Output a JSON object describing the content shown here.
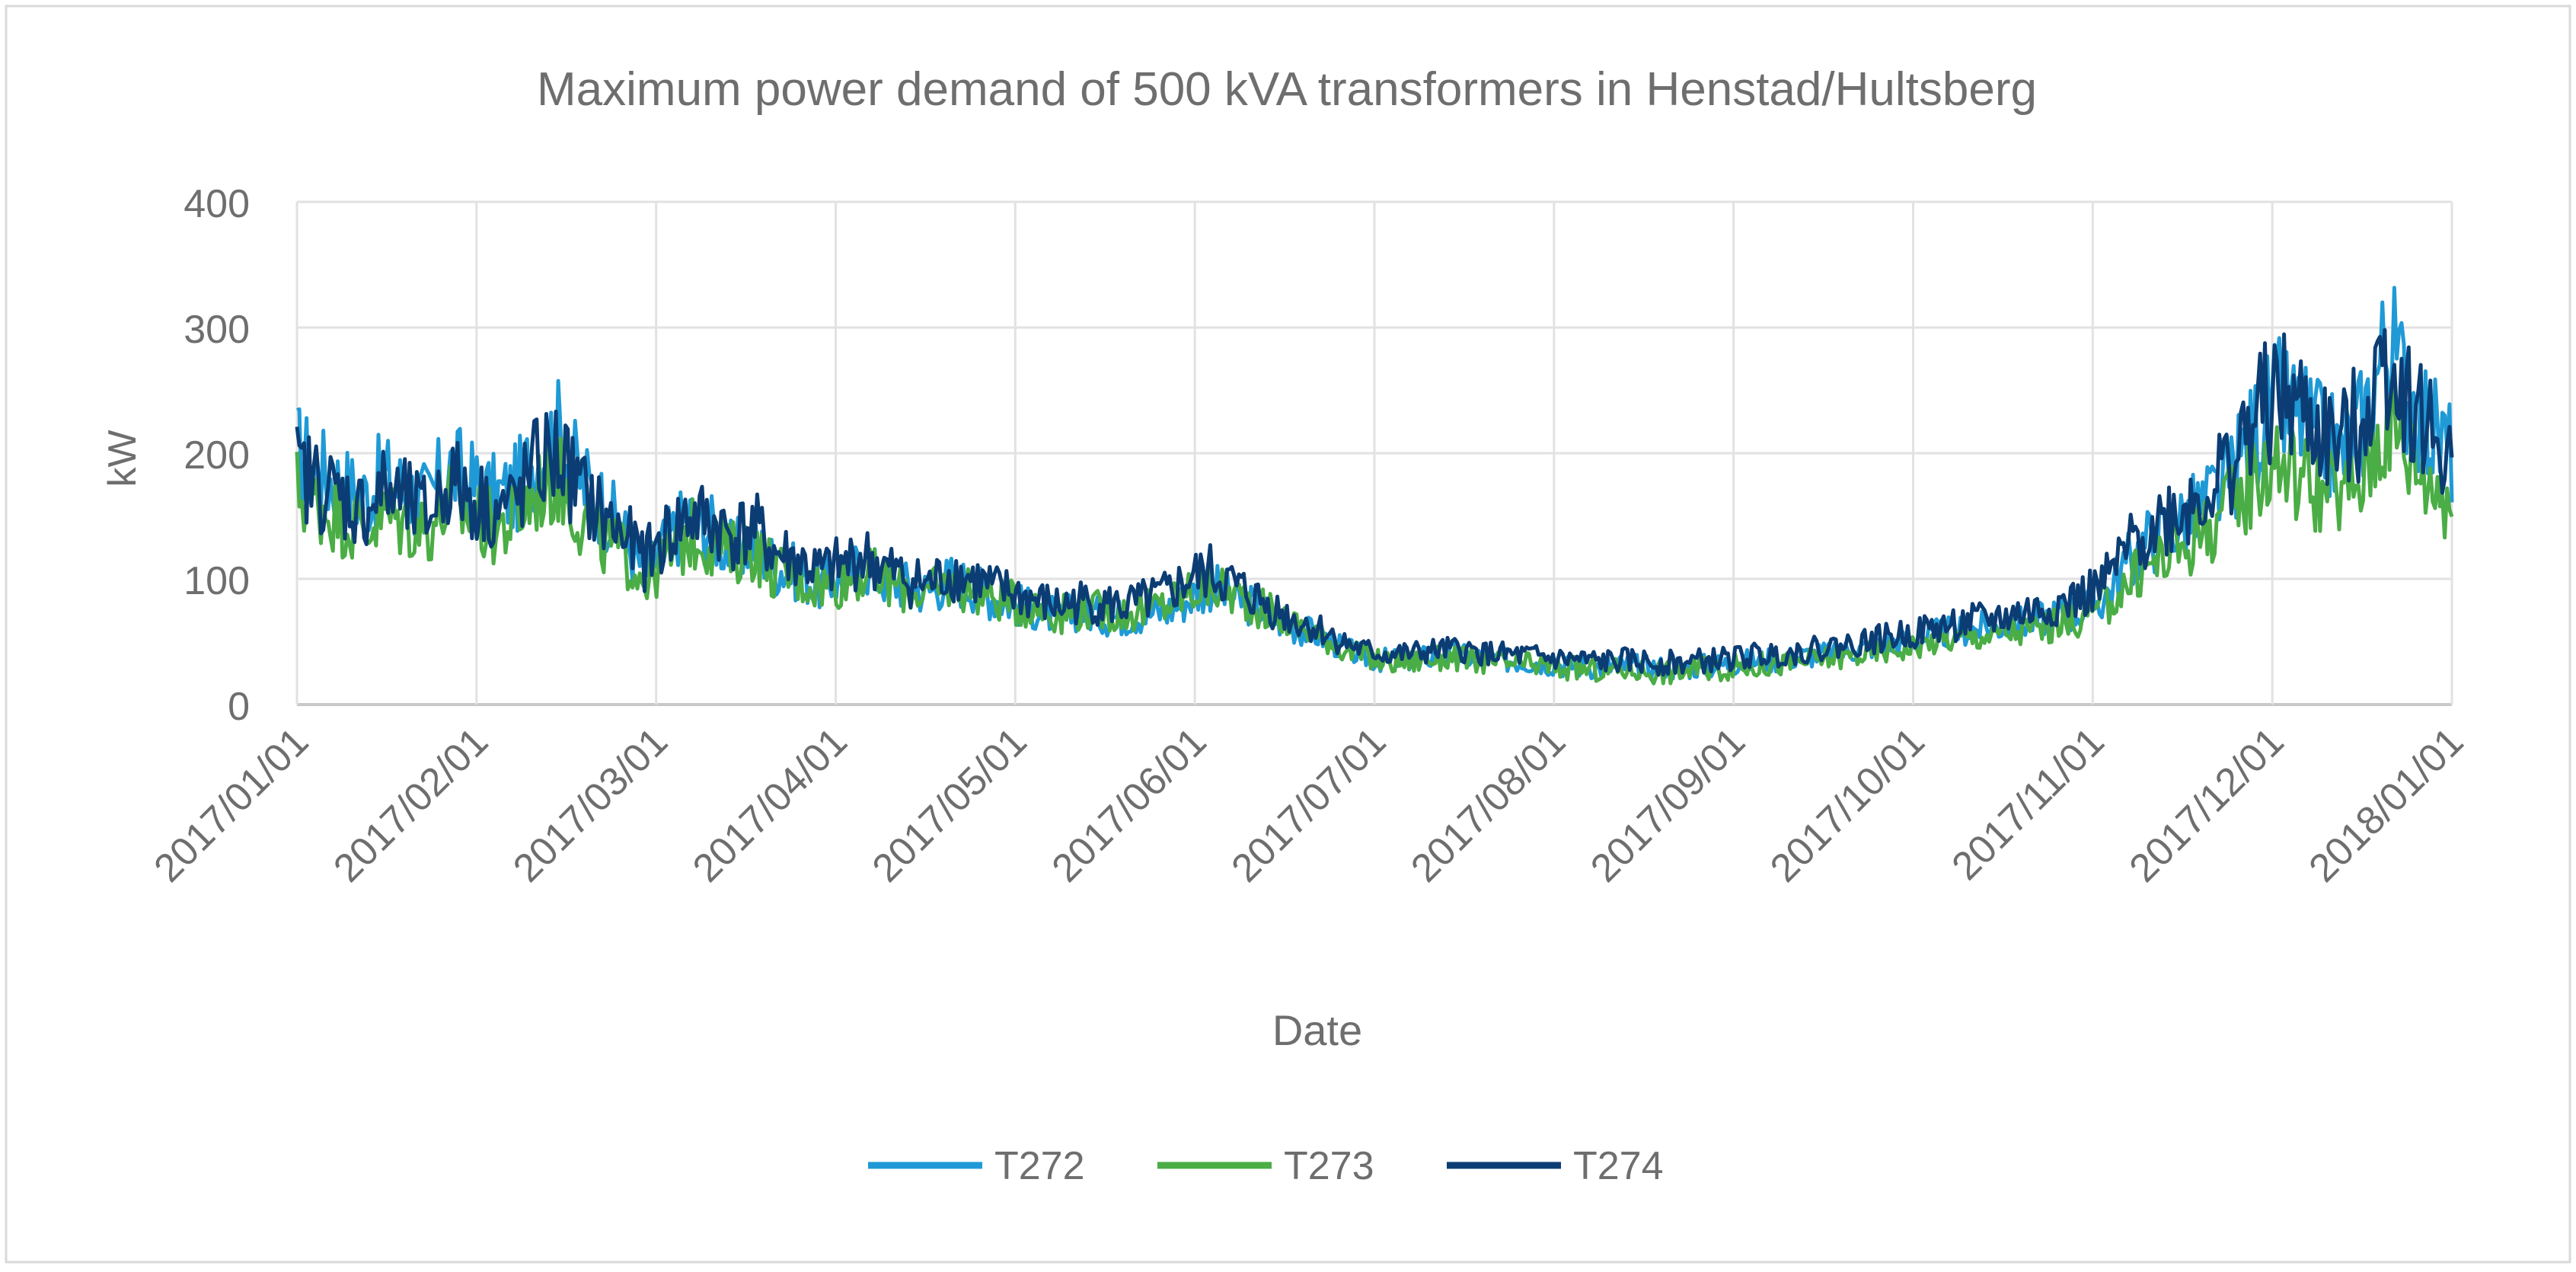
{
  "chart_data": {
    "type": "line",
    "title": "Maximum power demand of 500 kVA transformers in Henstad/Hultsberg",
    "xlabel": "Date",
    "ylabel": "kW",
    "ylim": [
      0,
      400
    ],
    "yticks": [
      0,
      100,
      200,
      300,
      400
    ],
    "xlim": [
      "2017/01/01",
      "2018/01/01"
    ],
    "xticks": [
      "2017/01/01",
      "2017/02/01",
      "2017/03/01",
      "2017/04/01",
      "2017/05/01",
      "2017/06/01",
      "2017/07/01",
      "2017/08/01",
      "2017/09/01",
      "2017/10/01",
      "2017/11/01",
      "2017/12/01",
      "2018/01/01"
    ],
    "grid": true,
    "legend": "bottom-center",
    "series": [
      {
        "name": "T272",
        "color": "#1f9ad6",
        "values": [
          200,
          185,
          175,
          165,
          180,
          170,
          160,
          190,
          175,
          165,
          170,
          200,
          215,
          180,
          160,
          135,
          105,
          130,
          150,
          140,
          120,
          130,
          110,
          105,
          95,
          100,
          110,
          100,
          95,
          90,
          100,
          95,
          85,
          80,
          75,
          70,
          75,
          70,
          70,
          72,
          75,
          85,
          95,
          85,
          78,
          68,
          60,
          55,
          45,
          38,
          35,
          36,
          38,
          40,
          38,
          36,
          35,
          34,
          32,
          31,
          30,
          31,
          30,
          29,
          30,
          31,
          33,
          35,
          36,
          38,
          40,
          42,
          45,
          48,
          50,
          55,
          58,
          60,
          62,
          65,
          68,
          72,
          75,
          85,
          110,
          130,
          140,
          150,
          165,
          185,
          220,
          240,
          230,
          210,
          200,
          230,
          290,
          250,
          220,
          200
        ]
      },
      {
        "name": "T273",
        "color": "#4aad45",
        "values": [
          170,
          160,
          150,
          140,
          150,
          145,
          140,
          160,
          150,
          140,
          145,
          170,
          180,
          150,
          130,
          120,
          100,
          115,
          135,
          130,
          120,
          125,
          105,
          100,
          95,
          98,
          105,
          98,
          92,
          88,
          95,
          92,
          85,
          80,
          77,
          72,
          76,
          74,
          72,
          75,
          80,
          90,
          95,
          88,
          80,
          70,
          62,
          56,
          45,
          38,
          34,
          34,
          36,
          37,
          35,
          33,
          32,
          31,
          29,
          28,
          27,
          28,
          27,
          26,
          27,
          28,
          30,
          31,
          32,
          34,
          36,
          38,
          40,
          43,
          45,
          50,
          52,
          54,
          56,
          58,
          60,
          64,
          68,
          78,
          95,
          110,
          120,
          130,
          145,
          160,
          185,
          195,
          185,
          170,
          165,
          185,
          230,
          200,
          180,
          165
        ]
      },
      {
        "name": "T274",
        "color": "#0b3d74",
        "values": [
          185,
          175,
          165,
          155,
          170,
          160,
          150,
          180,
          165,
          155,
          160,
          190,
          200,
          170,
          150,
          135,
          115,
          135,
          150,
          145,
          135,
          140,
          120,
          115,
          105,
          110,
          118,
          108,
          100,
          95,
          105,
          100,
          92,
          88,
          82,
          78,
          82,
          80,
          78,
          82,
          88,
          100,
          105,
          95,
          85,
          75,
          66,
          60,
          50,
          43,
          40,
          40,
          42,
          44,
          42,
          40,
          39,
          38,
          36,
          35,
          34,
          35,
          34,
          33,
          34,
          35,
          37,
          39,
          40,
          42,
          45,
          47,
          50,
          53,
          56,
          60,
          63,
          66,
          68,
          72,
          75,
          80,
          85,
          95,
          120,
          140,
          150,
          160,
          175,
          195,
          230,
          245,
          235,
          215,
          205,
          235,
          280,
          245,
          215,
          195
        ]
      }
    ]
  }
}
